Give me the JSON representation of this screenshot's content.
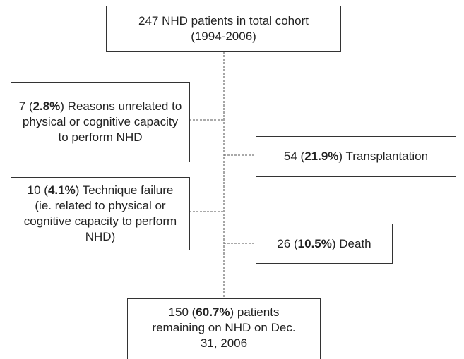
{
  "nodes": [
    {
      "text": "247 NHD patients in total cohort (1994-2006)"
    },
    {
      "before": "7 (",
      "bold": "2.8%",
      "after": ") Reasons unrelated to physical or cognitive capacity to perform NHD"
    },
    {
      "before": "54 (",
      "bold": "21.9%",
      "after": ") Transplantation"
    },
    {
      "before": "10 (",
      "bold": "4.1%",
      "after": ") Technique failure (ie. related to physical or cognitive capacity to perform NHD)"
    },
    {
      "before": "26 (",
      "bold": "10.5%",
      "after": ") Death"
    },
    {
      "before": "150 (",
      "bold": "60.7%",
      "after": ") patients remaining on NHD on Dec. 31, 2006"
    }
  ]
}
